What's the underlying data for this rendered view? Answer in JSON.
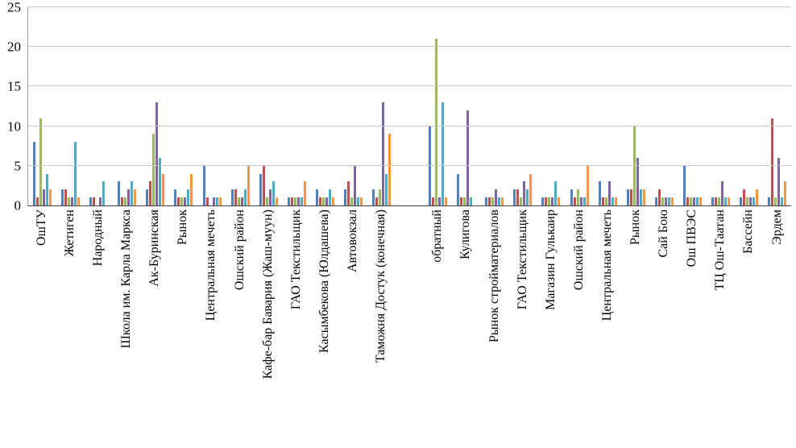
{
  "chart_data": {
    "type": "bar",
    "title": "",
    "xlabel": "",
    "ylabel": "",
    "ylim": [
      0,
      25
    ],
    "yticks": [
      0,
      5,
      10,
      15,
      20,
      25
    ],
    "grid": true,
    "legend": "none",
    "gap_note": "empty category acts as separator between outbound and return direction stops",
    "categories": [
      "ОшТУ",
      "Жетиген",
      "Народный",
      "Школа им. Карла Маркса",
      "Ак-Буринская",
      "Рынок",
      "Центральная мечеть",
      "Ошский район",
      "Кафе-бар Бавария (Жаш-муун)",
      "ГАО Текстильщик",
      "Касымбекова (Юлдашева)",
      "Автовокзал",
      "Таможня Достук (конечная)",
      "",
      "обратный",
      "Кулигова",
      "Рынок стройматериалов",
      "ГАО Текстильщик",
      "Магазин Гулькаир",
      "Ошский район",
      "Центральная мечеть",
      "Рынок",
      "Сай Бою",
      "Ош ПВЭС",
      "ТЦ Ош-Таатан",
      "Бассейн",
      "Эрдем"
    ],
    "series": [
      {
        "name": "blue",
        "color": "#4F81BD",
        "values": [
          8,
          2,
          1,
          3,
          2,
          2,
          5,
          2,
          4,
          1,
          2,
          2,
          2,
          0,
          10,
          4,
          1,
          2,
          1,
          2,
          3,
          2,
          1,
          5,
          1,
          1,
          1
        ]
      },
      {
        "name": "red",
        "color": "#C0504D",
        "values": [
          1,
          2,
          1,
          1,
          3,
          1,
          1,
          2,
          5,
          1,
          1,
          3,
          1,
          0,
          1,
          1,
          1,
          2,
          1,
          1,
          1,
          2,
          2,
          1,
          1,
          2,
          11
        ]
      },
      {
        "name": "green",
        "color": "#9BBB59",
        "values": [
          11,
          1,
          0,
          1,
          9,
          1,
          0,
          1,
          1,
          1,
          1,
          1,
          2,
          0,
          21,
          1,
          1,
          1,
          1,
          2,
          1,
          10,
          1,
          1,
          1,
          1,
          1
        ]
      },
      {
        "name": "purple",
        "color": "#8064A2",
        "values": [
          2,
          1,
          1,
          2,
          13,
          1,
          1,
          1,
          2,
          1,
          1,
          5,
          13,
          0,
          1,
          12,
          2,
          3,
          1,
          1,
          3,
          6,
          1,
          1,
          3,
          1,
          6
        ]
      },
      {
        "name": "teal",
        "color": "#4BACC6",
        "values": [
          4,
          8,
          3,
          3,
          6,
          2,
          1,
          2,
          3,
          1,
          2,
          1,
          4,
          0,
          13,
          1,
          1,
          2,
          3,
          1,
          1,
          2,
          1,
          1,
          1,
          1,
          1
        ]
      },
      {
        "name": "orange",
        "color": "#F79646",
        "values": [
          2,
          1,
          0,
          2,
          4,
          4,
          1,
          5,
          1,
          3,
          1,
          1,
          9,
          0,
          1,
          0,
          1,
          4,
          1,
          5,
          1,
          2,
          1,
          1,
          1,
          2,
          3
        ]
      }
    ]
  }
}
